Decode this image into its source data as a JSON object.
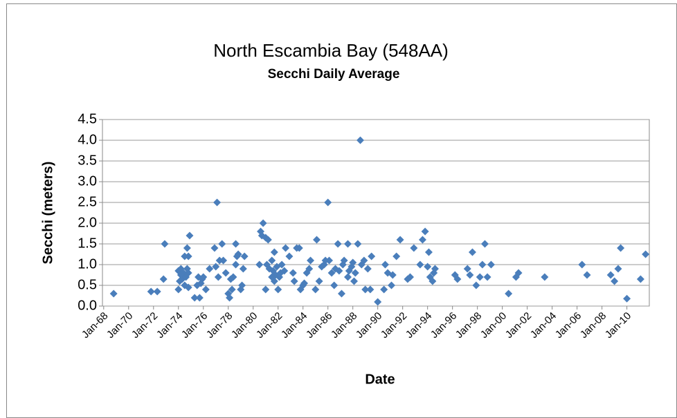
{
  "chart_data": {
    "type": "scatter",
    "title": "North Escambia Bay (548AA)",
    "subtitle": "Secchi Daily Average",
    "x_label": "Date",
    "y_label": "Secchi (meters)",
    "color": "#4a7ebb",
    "grid": true,
    "x": [
      1968.8,
      1971.8,
      1972.3,
      1972.9,
      1972.8,
      1974.0,
      1974.0,
      1974.1,
      1974.2,
      1974.2,
      1974.3,
      1974.4,
      1974.5,
      1974.5,
      1974.6,
      1974.7,
      1974.7,
      1974.8,
      1974.9,
      1974.8,
      1974.8,
      1975.3,
      1975.5,
      1975.6,
      1975.7,
      1975.8,
      1975.9,
      1976.0,
      1976.2,
      1976.5,
      1976.9,
      1977.0,
      1977.1,
      1977.2,
      1977.3,
      1977.5,
      1977.6,
      1977.8,
      1978.0,
      1978.1,
      1978.2,
      1978.3,
      1978.4,
      1978.6,
      1978.6,
      1978.7,
      1978.8,
      1979.0,
      1979.1,
      1979.2,
      1979.3,
      1980.5,
      1980.6,
      1980.7,
      1980.8,
      1981.0,
      1981.0,
      1981.1,
      1981.2,
      1981.3,
      1981.5,
      1981.5,
      1981.6,
      1981.7,
      1981.7,
      1981.8,
      1981.9,
      1982.0,
      1982.1,
      1982.2,
      1982.3,
      1982.5,
      1982.6,
      1982.9,
      1983.2,
      1983.3,
      1983.5,
      1983.7,
      1983.8,
      1984.0,
      1984.1,
      1984.3,
      1984.5,
      1984.6,
      1985.0,
      1985.1,
      1985.3,
      1985.5,
      1985.7,
      1985.8,
      1986.0,
      1986.1,
      1986.3,
      1986.5,
      1986.6,
      1986.8,
      1986.9,
      1987.1,
      1987.2,
      1987.3,
      1987.6,
      1987.6,
      1987.7,
      1987.9,
      1988.0,
      1988.1,
      1988.2,
      1988.4,
      1988.6,
      1988.7,
      1988.9,
      1989.0,
      1989.2,
      1989.4,
      1989.5,
      1990.0,
      1990.5,
      1990.6,
      1990.8,
      1991.1,
      1991.2,
      1991.5,
      1991.8,
      1992.4,
      1992.6,
      1992.9,
      1993.4,
      1993.6,
      1993.8,
      1994.0,
      1994.1,
      1994.2,
      1994.4,
      1994.5,
      1994.6,
      1996.2,
      1996.4,
      1997.2,
      1997.4,
      1997.6,
      1997.9,
      1998.2,
      1998.4,
      1998.6,
      1998.8,
      1999.1,
      2000.5,
      2001.1,
      2001.3,
      2003.4,
      2006.4,
      2006.8,
      2008.7,
      2009.0,
      2009.3,
      2009.5,
      2010.0,
      2011.1,
      2011.5
    ],
    "values": [
      0.3,
      0.35,
      0.35,
      1.5,
      0.65,
      0.4,
      0.85,
      0.6,
      0.75,
      0.9,
      0.65,
      0.8,
      1.2,
      0.5,
      0.7,
      0.9,
      1.4,
      1.2,
      1.7,
      0.45,
      0.8,
      0.2,
      0.5,
      0.7,
      0.2,
      0.55,
      0.65,
      0.7,
      0.4,
      0.9,
      1.4,
      0.95,
      2.5,
      0.7,
      1.1,
      1.5,
      1.1,
      0.8,
      0.3,
      0.2,
      0.65,
      0.4,
      0.7,
      1.0,
      1.5,
      1.2,
      1.25,
      0.4,
      0.5,
      0.9,
      1.2,
      1.0,
      1.8,
      1.7,
      2.0,
      1.65,
      0.4,
      1.0,
      1.6,
      0.9,
      0.7,
      1.1,
      0.85,
      0.6,
      1.3,
      0.75,
      0.95,
      0.4,
      0.7,
      0.8,
      1.0,
      0.85,
      1.4,
      1.2,
      0.8,
      0.6,
      1.4,
      1.4,
      0.4,
      0.5,
      0.55,
      0.8,
      0.9,
      1.1,
      0.4,
      1.6,
      0.6,
      0.95,
      1.0,
      1.1,
      2.5,
      1.1,
      0.8,
      0.5,
      0.9,
      1.5,
      0.85,
      0.3,
      1.0,
      1.1,
      1.5,
      0.7,
      0.85,
      0.95,
      1.05,
      0.6,
      0.8,
      1.5,
      4.0,
      1.0,
      1.1,
      0.4,
      0.9,
      0.4,
      1.2,
      0.1,
      0.4,
      1.0,
      0.8,
      0.5,
      0.75,
      1.2,
      1.6,
      0.65,
      0.7,
      1.4,
      1.0,
      1.6,
      1.8,
      0.95,
      1.3,
      0.7,
      0.6,
      0.8,
      0.9,
      0.75,
      0.65,
      0.9,
      0.75,
      1.3,
      0.5,
      0.7,
      1.0,
      1.5,
      0.7,
      1.0,
      0.3,
      0.7,
      0.8,
      0.7,
      1.0,
      0.75,
      0.75,
      0.6,
      0.9,
      1.4,
      0.18,
      0.65,
      1.25
    ],
    "xlim": [
      1967.9,
      2011.8
    ],
    "xticks": [
      {
        "value": 1968,
        "label": "Jan-68"
      },
      {
        "value": 1970,
        "label": "Jan-70"
      },
      {
        "value": 1972,
        "label": "Jan-72"
      },
      {
        "value": 1974,
        "label": "Jan-74"
      },
      {
        "value": 1976,
        "label": "Jan-76"
      },
      {
        "value": 1978,
        "label": "Jan-78"
      },
      {
        "value": 1980,
        "label": "Jan-80"
      },
      {
        "value": 1982,
        "label": "Jan-82"
      },
      {
        "value": 1984,
        "label": "Jan-84"
      },
      {
        "value": 1986,
        "label": "Jan-86"
      },
      {
        "value": 1988,
        "label": "Jan-88"
      },
      {
        "value": 1990,
        "label": "Jan-90"
      },
      {
        "value": 1992,
        "label": "Jan-92"
      },
      {
        "value": 1994,
        "label": "Jan-94"
      },
      {
        "value": 1996,
        "label": "Jan-96"
      },
      {
        "value": 1998,
        "label": "Jan-98"
      },
      {
        "value": 2000,
        "label": "Jan-00"
      },
      {
        "value": 2002,
        "label": "Jan-02"
      },
      {
        "value": 2004,
        "label": "Jan-04"
      },
      {
        "value": 2006,
        "label": "Jan-06"
      },
      {
        "value": 2008,
        "label": "Jan-08"
      },
      {
        "value": 2010,
        "label": "Jan-10"
      }
    ],
    "ylim": [
      0,
      4.5
    ],
    "yticks": [
      {
        "value": 0,
        "label": "0.0"
      },
      {
        "value": 0.5,
        "label": "0.5"
      },
      {
        "value": 1,
        "label": "1.0"
      },
      {
        "value": 1.5,
        "label": "1.5"
      },
      {
        "value": 2,
        "label": "2.0"
      },
      {
        "value": 2.5,
        "label": "2.5"
      },
      {
        "value": 3,
        "label": "3.0"
      },
      {
        "value": 3.5,
        "label": "3.5"
      },
      {
        "value": 4,
        "label": "4.0"
      },
      {
        "value": 4.5,
        "label": "4.5"
      }
    ]
  }
}
